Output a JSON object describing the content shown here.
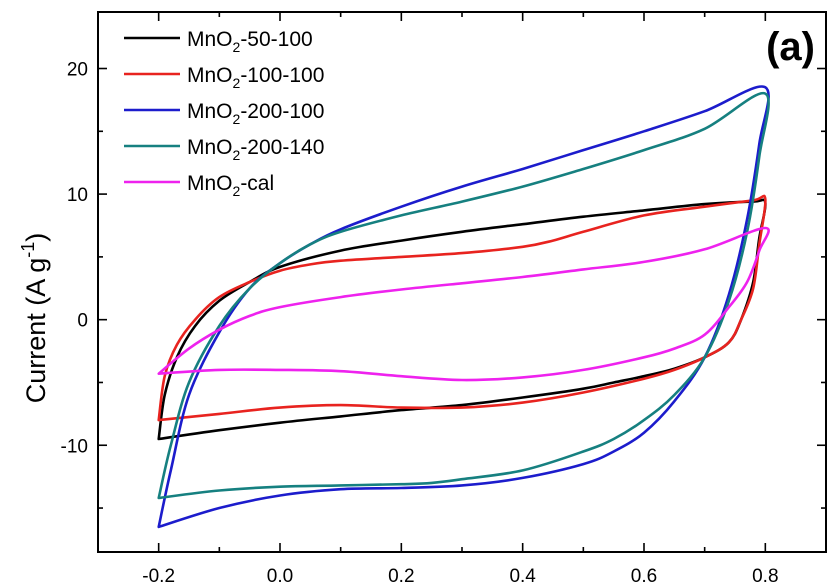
{
  "chart_data": {
    "type": "line",
    "panel_label": "(a)",
    "ylabel": {
      "main": "Current (A g",
      "sup": "-1",
      "close": ")"
    },
    "xlabel": "",
    "xlim": [
      -0.3,
      0.9
    ],
    "ylim": [
      -18.5,
      24.5
    ],
    "x_ticks": [
      -0.2,
      0.0,
      0.2,
      0.4,
      0.6,
      0.8
    ],
    "x_tick_labels": [
      "-0.2",
      "0.0",
      "0.2",
      "0.4",
      "0.6",
      "0.8"
    ],
    "y_ticks": [
      -10,
      0,
      10,
      20
    ],
    "y_tick_labels": [
      "-10",
      "0",
      "10",
      "20"
    ],
    "grid": false,
    "legend_position": "top-left",
    "series": [
      {
        "name_parts": [
          "MnO",
          "2",
          "-50-100"
        ],
        "color": "#000000",
        "x": [
          -0.2,
          -0.19,
          -0.17,
          -0.14,
          -0.1,
          -0.05,
          0.0,
          0.1,
          0.2,
          0.3,
          0.4,
          0.5,
          0.6,
          0.7,
          0.78,
          0.8,
          0.79,
          0.78,
          0.76,
          0.74,
          0.7,
          0.65,
          0.6,
          0.55,
          0.5,
          0.4,
          0.3,
          0.2,
          0.1,
          0.0,
          -0.1,
          -0.2
        ],
        "y": [
          -9.5,
          -6.0,
          -3.0,
          -0.5,
          1.5,
          3.0,
          4.2,
          5.5,
          6.3,
          7.0,
          7.6,
          8.2,
          8.7,
          9.2,
          9.4,
          9.3,
          6.5,
          3.0,
          0.0,
          -1.8,
          -3.0,
          -3.9,
          -4.5,
          -5.0,
          -5.5,
          -6.2,
          -6.8,
          -7.2,
          -7.7,
          -8.2,
          -8.8,
          -9.5
        ]
      },
      {
        "name_parts": [
          "MnO",
          "2",
          "-100-100"
        ],
        "color": "#e8231f",
        "x": [
          -0.2,
          -0.19,
          -0.17,
          -0.14,
          -0.1,
          -0.05,
          0.0,
          0.05,
          0.1,
          0.2,
          0.3,
          0.4,
          0.45,
          0.5,
          0.6,
          0.7,
          0.78,
          0.8,
          0.79,
          0.78,
          0.76,
          0.74,
          0.7,
          0.65,
          0.6,
          0.5,
          0.4,
          0.3,
          0.2,
          0.1,
          0.0,
          -0.1,
          -0.2
        ],
        "y": [
          -8.0,
          -4.5,
          -2.0,
          0.0,
          1.8,
          3.0,
          3.9,
          4.4,
          4.7,
          5.0,
          5.3,
          5.8,
          6.3,
          7.0,
          8.3,
          9.0,
          9.5,
          9.6,
          6.0,
          2.5,
          0.0,
          -1.8,
          -3.0,
          -4.0,
          -4.7,
          -5.8,
          -6.6,
          -7.0,
          -7.0,
          -6.8,
          -7.0,
          -7.5,
          -8.0
        ]
      },
      {
        "name_parts": [
          "MnO",
          "2",
          "-200-100"
        ],
        "color": "#1c1ccc",
        "x": [
          -0.2,
          -0.18,
          -0.15,
          -0.1,
          -0.05,
          0.0,
          0.05,
          0.1,
          0.2,
          0.3,
          0.4,
          0.5,
          0.6,
          0.7,
          0.8,
          0.79,
          0.77,
          0.74,
          0.7,
          0.65,
          0.6,
          0.55,
          0.5,
          0.4,
          0.3,
          0.2,
          0.1,
          0.0,
          -0.1,
          -0.2
        ],
        "y": [
          -16.5,
          -12.0,
          -6.0,
          -1.0,
          2.5,
          4.5,
          6.0,
          7.2,
          9.0,
          10.6,
          12.0,
          13.5,
          15.0,
          16.6,
          18.5,
          14.0,
          8.0,
          2.0,
          -3.0,
          -6.5,
          -9.0,
          -10.5,
          -11.5,
          -12.6,
          -13.2,
          -13.4,
          -13.5,
          -14.0,
          -15.0,
          -16.5
        ]
      },
      {
        "name_parts": [
          "MnO",
          "2",
          "-200-140"
        ],
        "color": "#168080",
        "x": [
          -0.2,
          -0.18,
          -0.15,
          -0.1,
          -0.05,
          0.0,
          0.05,
          0.1,
          0.2,
          0.3,
          0.4,
          0.5,
          0.6,
          0.7,
          0.8,
          0.79,
          0.77,
          0.74,
          0.7,
          0.65,
          0.6,
          0.55,
          0.5,
          0.4,
          0.3,
          0.25,
          0.2,
          0.1,
          0.0,
          -0.1,
          -0.2
        ],
        "y": [
          -14.2,
          -10.0,
          -5.0,
          -0.5,
          2.5,
          4.5,
          6.0,
          7.0,
          8.3,
          9.4,
          10.6,
          12.0,
          13.5,
          15.2,
          18.0,
          13.0,
          7.0,
          1.5,
          -3.0,
          -6.0,
          -8.0,
          -9.5,
          -10.5,
          -12.0,
          -12.7,
          -13.0,
          -13.1,
          -13.2,
          -13.3,
          -13.6,
          -14.2
        ]
      },
      {
        "name_parts": [
          "MnO",
          "2",
          "-cal"
        ],
        "color": "#ee22ee",
        "x": [
          -0.2,
          -0.15,
          -0.1,
          -0.05,
          0.0,
          0.1,
          0.2,
          0.3,
          0.4,
          0.5,
          0.6,
          0.7,
          0.8,
          0.79,
          0.77,
          0.74,
          0.7,
          0.65,
          0.6,
          0.5,
          0.4,
          0.3,
          0.2,
          0.1,
          0.0,
          -0.1,
          -0.2
        ],
        "y": [
          -4.3,
          -2.3,
          -0.8,
          0.3,
          1.0,
          1.8,
          2.4,
          2.9,
          3.4,
          4.0,
          4.6,
          5.6,
          7.3,
          5.5,
          3.0,
          1.0,
          -1.2,
          -2.3,
          -3.0,
          -4.0,
          -4.6,
          -4.8,
          -4.5,
          -4.1,
          -4.0,
          -4.0,
          -4.3
        ]
      }
    ]
  }
}
